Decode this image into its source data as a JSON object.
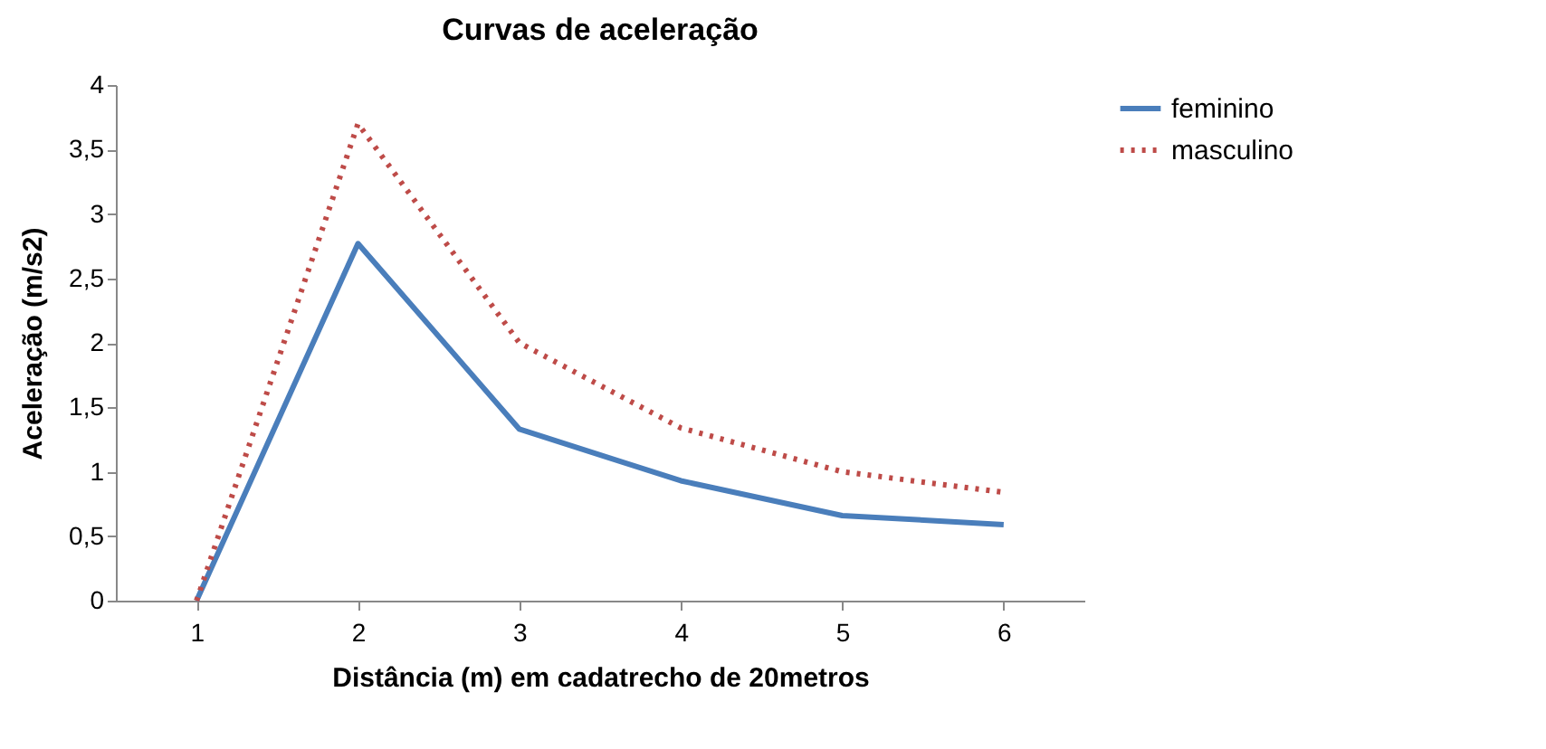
{
  "chart_data": {
    "type": "line",
    "title": "Curvas de aceleração",
    "xlabel": "Distância (m) em cadatrecho de 20metros",
    "ylabel": "Aceleração (m/s2)",
    "categories": [
      "1",
      "2",
      "3",
      "4",
      "5",
      "6"
    ],
    "series": [
      {
        "name": "feminino",
        "color": "#4a7ebb",
        "line_style": "solid",
        "values": [
          0,
          2.77,
          1.33,
          0.93,
          0.66,
          0.59
        ]
      },
      {
        "name": "masculino",
        "color": "#be4b48",
        "line_style": "dotted",
        "values": [
          0,
          3.7,
          2.0,
          1.34,
          1.0,
          0.84
        ]
      }
    ],
    "ylim": [
      0,
      4
    ],
    "yticks": [
      0,
      {
        "value": 0.5,
        "label": "0,5"
      },
      1,
      {
        "value": 1.5,
        "label": "1,5"
      },
      2,
      {
        "value": 2.5,
        "label": "2,5"
      },
      3,
      {
        "value": 3.5,
        "label": "3,5"
      },
      4
    ],
    "grid": false,
    "legend": "right",
    "marker": "none"
  }
}
